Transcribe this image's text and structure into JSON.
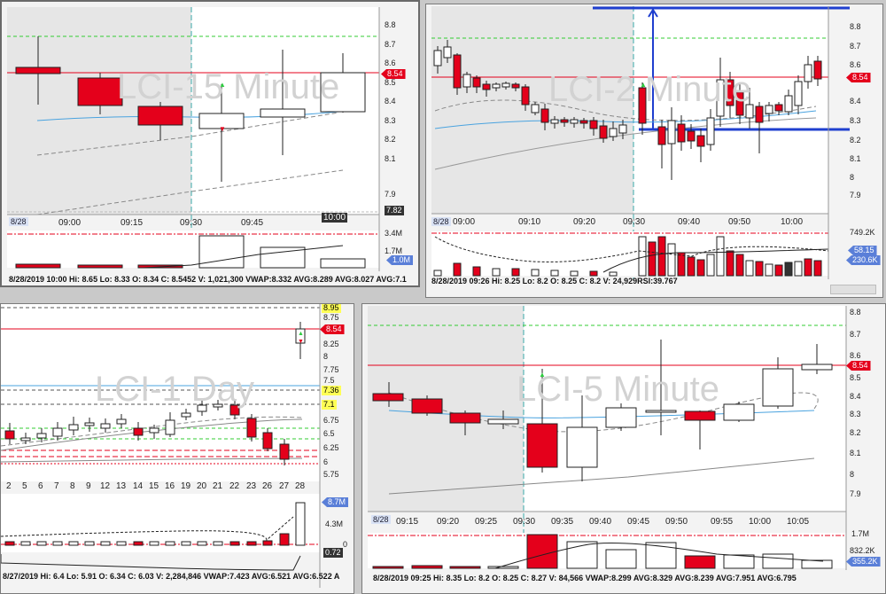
{
  "colors": {
    "up": "#ffffff",
    "down": "#e4001b",
    "vwap": "#4aa3df",
    "ma": "#888888",
    "price_line": "#e4001b",
    "highlight": "#ffffff",
    "premarket": "#e6e6e6",
    "measure": "#1f3fcf"
  },
  "panel_15min": {
    "watermark": "LCI-15 Minute",
    "date_label": "8/28",
    "time_ticks": [
      "09:00",
      "09:15",
      "09:30",
      "09:45",
      "10:00"
    ],
    "y_ticks": [
      "8.8",
      "8.7",
      "8.6",
      "8.5",
      "8.4",
      "8.3",
      "8.2",
      "8.1",
      "7.9"
    ],
    "price_badge": "8.54",
    "low_badge": "7.82",
    "vol_ticks": [
      "3.4M",
      "1.7M"
    ],
    "vol_badge": "1.0M",
    "status": "8/28/2019 10:00  Hi: 8.65  Lo: 8.33  O: 8.34  C: 8.5452  V: 1,021,300  VWAP:8.332  AVG:8.289  AVG:8.027  AVG:7.1"
  },
  "panel_2min": {
    "watermark": "LCI-2 Minute",
    "date_label": "8/28",
    "time_ticks": [
      "09:00",
      "09:10",
      "09:20",
      "09:30",
      "09:40",
      "09:50",
      "10:00"
    ],
    "y_ticks": [
      "8.8",
      "8.7",
      "8.6",
      "8.5",
      "8.4",
      "8.3",
      "8.2",
      "8.1",
      "8",
      "7.9"
    ],
    "price_badge": "8.54",
    "vol_ticks": [
      "749.2K"
    ],
    "vol_badges": [
      "58.15",
      "230.6K"
    ],
    "status": "8/28/2019 09:26  Hi: 8.25  Lo: 8.2  O: 8.25  C: 8.2  V: 24,929RSI:39.767"
  },
  "panel_1day": {
    "watermark": "LCI-1 Day",
    "day_ticks": [
      "2",
      "5",
      "6",
      "7",
      "8",
      "9",
      "12",
      "13",
      "14",
      "15",
      "16",
      "19",
      "20",
      "21",
      "22",
      "23",
      "26",
      "27",
      "28"
    ],
    "y_ticks": [
      "8.95",
      "8.75",
      "8.54",
      "8.25",
      "8",
      "7.75",
      "7.5",
      "7.36",
      "7.1",
      "6.75",
      "6.5",
      "6.25",
      "6",
      "5.75"
    ],
    "price_badge": "8.54",
    "yellow_badges": [
      "8.95",
      "7.36",
      "7.1"
    ],
    "vol_ticks": [
      "4.3M",
      "0"
    ],
    "vol_badges": [
      "8.7M",
      "0.72"
    ],
    "status": "8/27/2019  Hi: 6.4  Lo: 5.91  O: 6.34  C: 6.03  V: 2,284,846  VWAP:7.423  AVG:6.521  AVG:6.522  A"
  },
  "panel_5min": {
    "watermark": "LCI-5 Minute",
    "date_label": "8/28",
    "time_ticks": [
      "09:15",
      "09:20",
      "09:25",
      "09:30",
      "09:35",
      "09:40",
      "09:45",
      "09:50",
      "09:55",
      "10:00",
      "10:05"
    ],
    "y_ticks": [
      "8.8",
      "8.7",
      "8.6",
      "8.5",
      "8.4",
      "8.3",
      "8.2",
      "8.1",
      "8",
      "7.9"
    ],
    "price_badge": "8.54",
    "vol_ticks": [
      "1.7M",
      "832.2K"
    ],
    "vol_badge": "355.2K",
    "status": "8/28/2019 09:25  Hi: 8.35  Lo: 8.2  O: 8.25  C: 8.27  V: 84,566  VWAP:8.299  AVG:8.329  AVG:8.239  AVG:7.951  AVG:6.795"
  }
}
